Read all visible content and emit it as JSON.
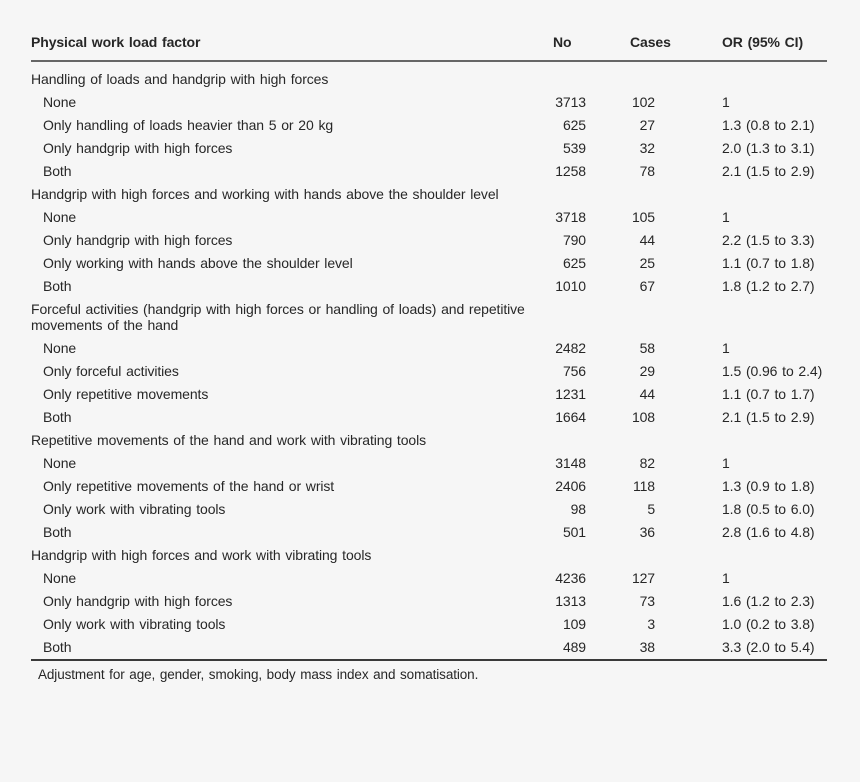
{
  "colors": {
    "background": "#f6f6f6",
    "text": "#272727",
    "header_rule": "#666666",
    "bottom_rule": "#3a3a3a"
  },
  "table": {
    "columns": [
      "Physical work load factor",
      "No",
      "Cases",
      "OR (95% CI)"
    ],
    "sections": [
      {
        "title": "Handling of loads and handgrip with high forces",
        "rows": [
          {
            "label": "None",
            "no": "3713",
            "cases": "102",
            "or": "1"
          },
          {
            "label": "Only handling of loads heavier than 5 or 20 kg",
            "no": "625",
            "cases": "27",
            "or": "1.3 (0.8 to 2.1)"
          },
          {
            "label": "Only handgrip with high forces",
            "no": "539",
            "cases": "32",
            "or": "2.0 (1.3 to 3.1)"
          },
          {
            "label": "Both",
            "no": "1258",
            "cases": "78",
            "or": "2.1 (1.5 to 2.9)"
          }
        ]
      },
      {
        "title": "Handgrip with high forces and working with hands above the shoulder level",
        "rows": [
          {
            "label": "None",
            "no": "3718",
            "cases": "105",
            "or": "1"
          },
          {
            "label": "Only handgrip with high forces",
            "no": "790",
            "cases": "44",
            "or": "2.2 (1.5 to 3.3)"
          },
          {
            "label": "Only working with hands above the shoulder level",
            "no": "625",
            "cases": "25",
            "or": "1.1 (0.7 to 1.8)"
          },
          {
            "label": "Both",
            "no": "1010",
            "cases": "67",
            "or": "1.8 (1.2 to 2.7)"
          }
        ]
      },
      {
        "title": "Forceful activities (handgrip with high forces or handling of loads) and repetitive\nmovements of the hand",
        "rows": [
          {
            "label": "None",
            "no": "2482",
            "cases": "58",
            "or": "1"
          },
          {
            "label": "Only forceful activities",
            "no": "756",
            "cases": "29",
            "or": "1.5 (0.96 to 2.4)"
          },
          {
            "label": "Only repetitive movements",
            "no": "1231",
            "cases": "44",
            "or": "1.1 (0.7 to 1.7)"
          },
          {
            "label": "Both",
            "no": "1664",
            "cases": "108",
            "or": "2.1 (1.5 to 2.9)"
          }
        ]
      },
      {
        "title": "Repetitive movements of the hand and work with vibrating tools",
        "rows": [
          {
            "label": "None",
            "no": "3148",
            "cases": "82",
            "or": "1"
          },
          {
            "label": "Only repetitive movements of the hand or wrist",
            "no": "2406",
            "cases": "118",
            "or": "1.3 (0.9 to 1.8)"
          },
          {
            "label": "Only work with vibrating tools",
            "no": "98",
            "cases": "5",
            "or": "1.8 (0.5 to 6.0)"
          },
          {
            "label": "Both",
            "no": "501",
            "cases": "36",
            "or": "2.8 (1.6 to 4.8)"
          }
        ]
      },
      {
        "title": "Handgrip with high forces and work with vibrating tools",
        "rows": [
          {
            "label": "None",
            "no": "4236",
            "cases": "127",
            "or": "1"
          },
          {
            "label": "Only handgrip with high forces",
            "no": "1313",
            "cases": "73",
            "or": "1.6 (1.2 to 2.3)"
          },
          {
            "label": "Only work with vibrating tools",
            "no": "109",
            "cases": "3",
            "or": "1.0 (0.2 to 3.8)"
          },
          {
            "label": "Both",
            "no": "489",
            "cases": "38",
            "or": "3.3 (2.0 to 5.4)"
          }
        ]
      }
    ],
    "footnote": "Adjustment for age, gender, smoking, body mass index and somatisation."
  }
}
